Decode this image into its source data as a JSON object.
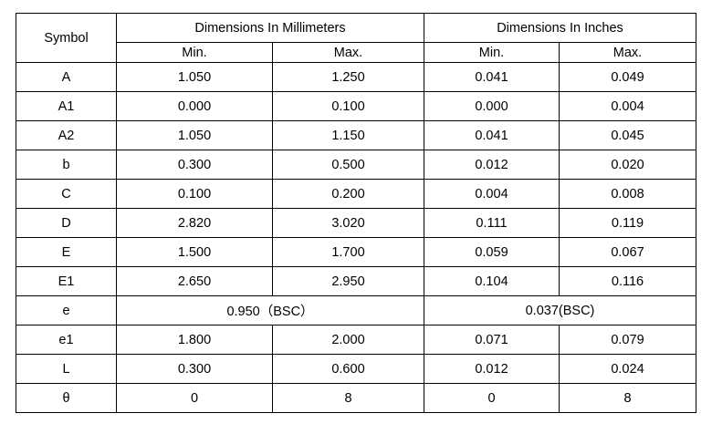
{
  "headers": {
    "symbol": "Symbol",
    "mm_group": "Dimensions In Millimeters",
    "in_group": "Dimensions In Inches",
    "mm_min": "Min.",
    "mm_max": "Max.",
    "in_min": "Min.",
    "in_max": "Max."
  },
  "rows": [
    {
      "symbol": "A",
      "mm_min": "1.050",
      "mm_max": "1.250",
      "in_min": "0.041",
      "in_max": "0.049"
    },
    {
      "symbol": "A1",
      "mm_min": "0.000",
      "mm_max": "0.100",
      "in_min": "0.000",
      "in_max": "0.004"
    },
    {
      "symbol": "A2",
      "mm_min": "1.050",
      "mm_max": "1.150",
      "in_min": "0.041",
      "in_max": "0.045"
    },
    {
      "symbol": "b",
      "mm_min": "0.300",
      "mm_max": "0.500",
      "in_min": "0.012",
      "in_max": "0.020"
    },
    {
      "symbol": "C",
      "mm_min": "0.100",
      "mm_max": "0.200",
      "in_min": "0.004",
      "in_max": "0.008"
    },
    {
      "symbol": "D",
      "mm_min": "2.820",
      "mm_max": "3.020",
      "in_min": "0.111",
      "in_max": "0.119"
    },
    {
      "symbol": "E",
      "mm_min": "1.500",
      "mm_max": "1.700",
      "in_min": "0.059",
      "in_max": "0.067"
    },
    {
      "symbol": "E1",
      "mm_min": "2.650",
      "mm_max": "2.950",
      "in_min": "0.104",
      "in_max": "0.116"
    },
    {
      "symbol": "e",
      "mm_bsc": "0.950（BSC）",
      "in_bsc": "0.037(BSC)"
    },
    {
      "symbol": "e1",
      "mm_min": "1.800",
      "mm_max": "2.000",
      "in_min": "0.071",
      "in_max": "0.079"
    },
    {
      "symbol": "L",
      "mm_min": "0.300",
      "mm_max": "0.600",
      "in_min": "0.012",
      "in_max": "0.024"
    },
    {
      "symbol": "θ",
      "mm_min": "0",
      "mm_max": "8",
      "in_min": "0",
      "in_max": "8"
    }
  ]
}
